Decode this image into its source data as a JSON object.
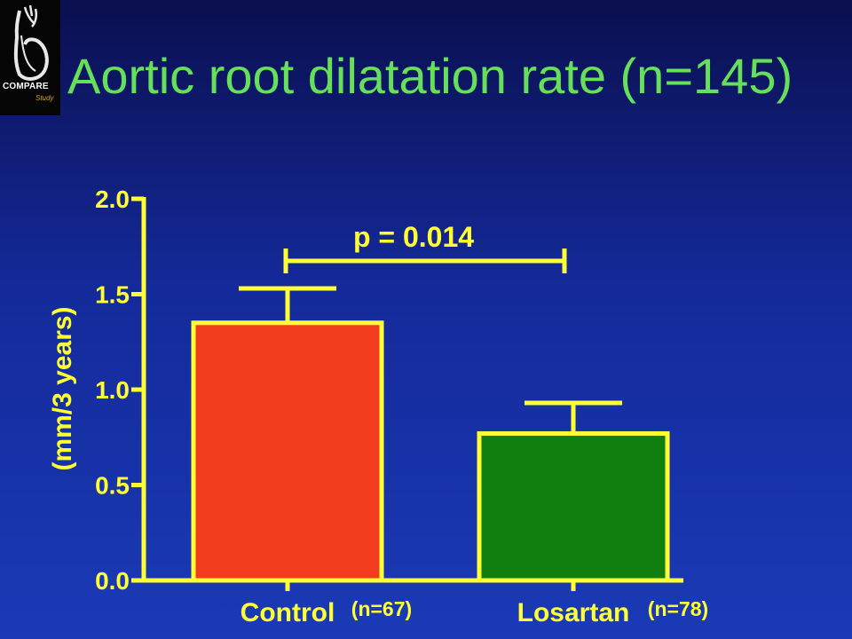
{
  "logo": {
    "word": "COMPARE",
    "sub": "Study"
  },
  "title": "Aortic root dilatation rate (n=145)",
  "colors": {
    "axis": "#ffff33",
    "control": "#f23c1e",
    "losartan": "#0f7f0f",
    "title": "#66e05a",
    "text": "#ffff33"
  },
  "chart_data": {
    "type": "bar",
    "categories": [
      "Control",
      "Losartan"
    ],
    "n_labels": [
      "(n=67)",
      "(n=78)"
    ],
    "values": [
      1.35,
      0.77
    ],
    "error_upper": [
      1.53,
      0.93
    ],
    "ylabel": "(mm/3 years)",
    "ylim": [
      0.0,
      2.0
    ],
    "yticks": [
      "0.0",
      "0.5",
      "1.0",
      "1.5",
      "2.0"
    ],
    "significance": {
      "label": "p = 0.014",
      "between": [
        0,
        1
      ]
    }
  }
}
